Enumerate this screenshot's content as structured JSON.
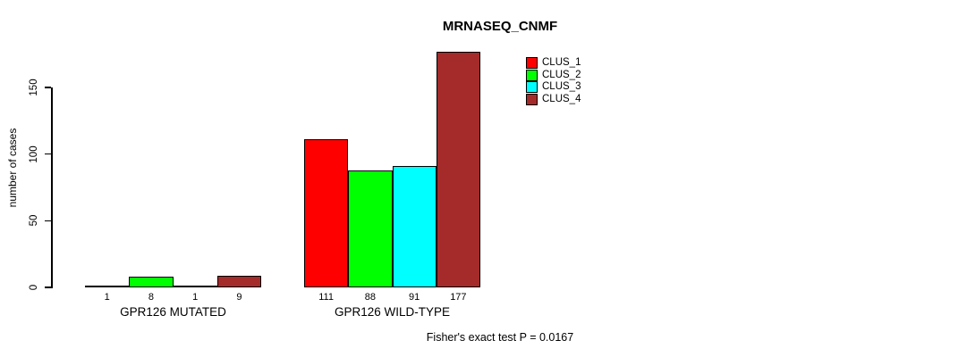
{
  "chart_data": {
    "type": "bar",
    "title": "MRNASEQ_CNMF",
    "ylabel": "number of cases",
    "xlabel": "",
    "annotation": "Fisher's exact test P = 0.0167",
    "categories": [
      "GPR126 MUTATED",
      "GPR126 WILD-TYPE"
    ],
    "series": [
      {
        "name": "CLUS_1",
        "color": "#FF0000",
        "values": [
          1,
          111
        ]
      },
      {
        "name": "CLUS_2",
        "color": "#00FF00",
        "values": [
          8,
          88
        ]
      },
      {
        "name": "CLUS_3",
        "color": "#00FFFF",
        "values": [
          1,
          91
        ]
      },
      {
        "name": "CLUS_4",
        "color": "#A52A2A",
        "values": [
          9,
          177
        ]
      }
    ],
    "bar_value_labels": [
      [
        1,
        8,
        1,
        9
      ],
      [
        111,
        88,
        91,
        177
      ]
    ],
    "yticks": [
      0,
      50,
      100,
      150
    ],
    "ylim": [
      0,
      177
    ],
    "grid": false,
    "legend_position": "top-right",
    "background": "#FFFFFF",
    "axis_color": "#000000"
  }
}
